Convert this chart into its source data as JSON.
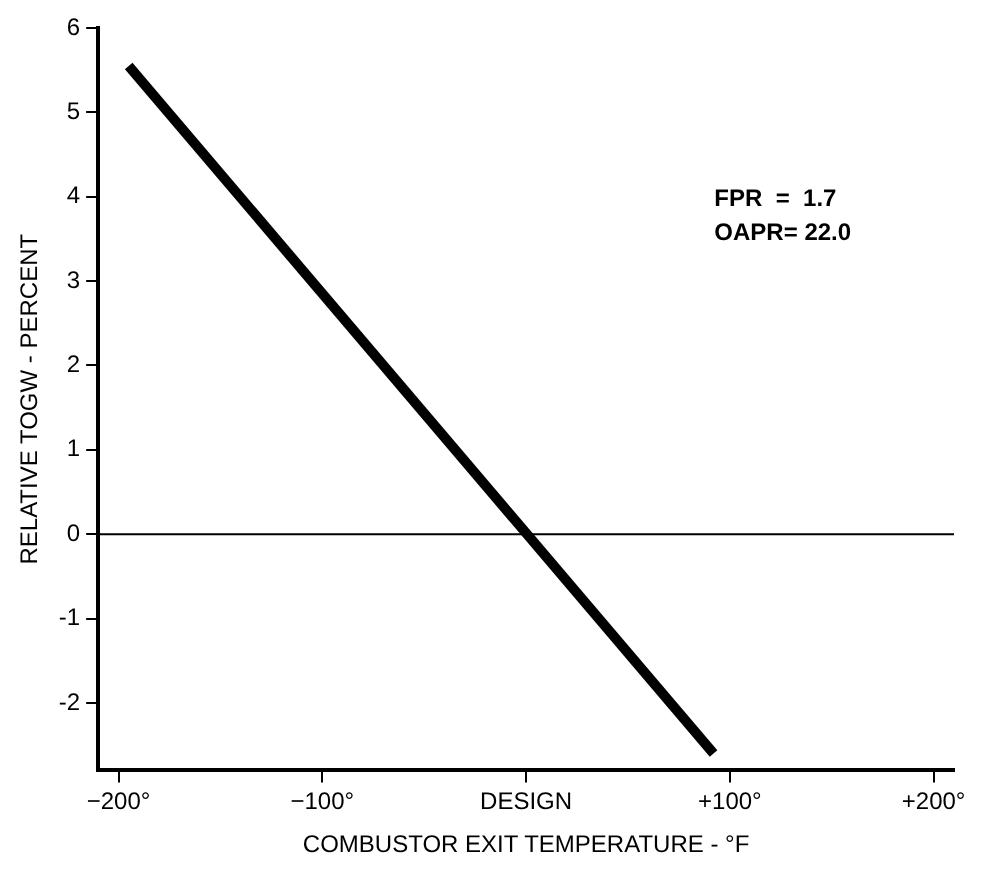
{
  "chart_data": {
    "type": "line",
    "xlabel": "COMBUSTOR EXIT TEMPERATURE - °F",
    "ylabel": "RELATIVE TOGW - PERCENT",
    "x": [
      -195,
      92
    ],
    "series": [
      {
        "color": "#000000",
        "values": [
          5.55,
          -2.6
        ]
      }
    ],
    "xlim": [
      -210,
      210
    ],
    "xticks": [
      {
        "value": -200,
        "label": "−200°"
      },
      {
        "value": -100,
        "label": "−100°"
      },
      {
        "value": 0,
        "label": "DESIGN"
      },
      {
        "value": 100,
        "label": "+100°"
      },
      {
        "value": 200,
        "label": "+200°"
      }
    ],
    "ylim": [
      -2.8,
      6
    ],
    "yticks": [
      -2,
      -1,
      0,
      1,
      2,
      3,
      4,
      5,
      6
    ],
    "ref_lines": [
      {
        "axis": "y",
        "value": 0,
        "color": "#000000"
      }
    ],
    "annotations": [
      "FPR  =  1.7",
      "OAPR= 22.0"
    ],
    "grid": false,
    "legend": false,
    "marker": "none",
    "line_style": "solid"
  }
}
